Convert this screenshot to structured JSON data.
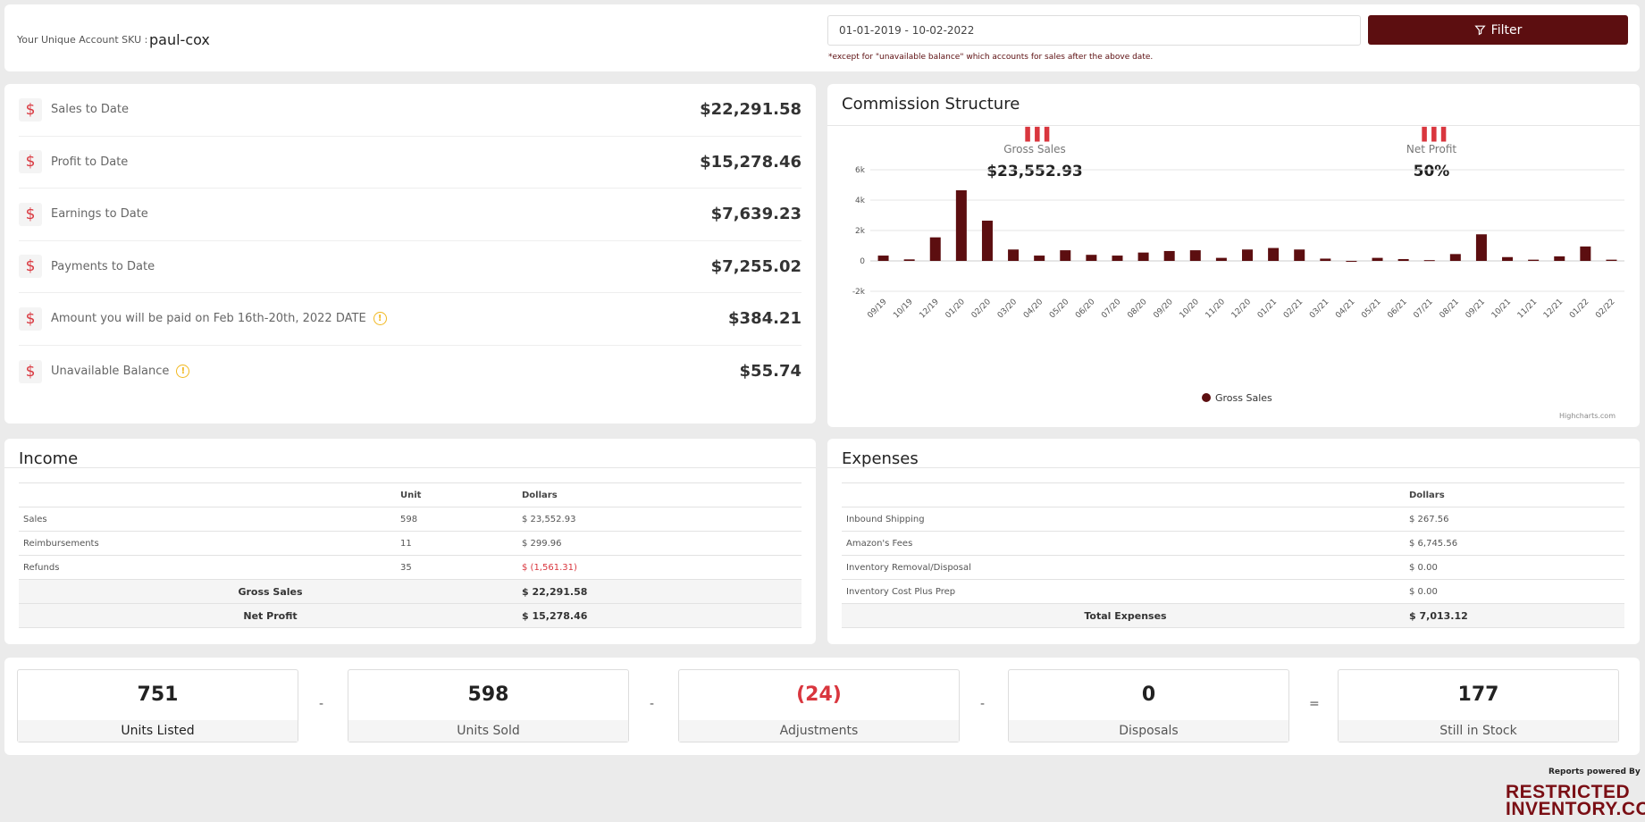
{
  "header": {
    "sku_label": "Your Unique Account SKU :",
    "sku_value": "paul-cox",
    "date_range": "01-01-2019 - 10-02-2022",
    "date_note": "*except for \"unavailable balance\" which accounts for sales after the above date.",
    "filter_label": "Filter"
  },
  "summary": {
    "rows": [
      {
        "label": "Sales to Date",
        "value": "$22,291.58",
        "info": false
      },
      {
        "label": "Profit to Date",
        "value": "$15,278.46",
        "info": false
      },
      {
        "label": "Earnings to Date",
        "value": "$7,639.23",
        "info": false
      },
      {
        "label": "Payments to Date",
        "value": "$7,255.02",
        "info": false
      },
      {
        "label": "Amount you will be paid on Feb 16th-20th, 2022 DATE",
        "value": "$384.21",
        "info": true
      },
      {
        "label": "Unavailable Balance",
        "value": "$55.74",
        "info": true
      }
    ]
  },
  "commission": {
    "title": "Commission Structure",
    "gross_label": "Gross Sales",
    "gross_value": "$23,552.93",
    "net_label": "Net Profit",
    "net_value": "50%",
    "credit": "Highcharts.com"
  },
  "chart_data": {
    "type": "bar",
    "categories": [
      "09/19",
      "10/19",
      "12/19",
      "01/20",
      "02/20",
      "03/20",
      "04/20",
      "05/20",
      "06/20",
      "07/20",
      "08/20",
      "09/20",
      "10/20",
      "11/20",
      "12/20",
      "01/21",
      "02/21",
      "03/21",
      "04/21",
      "05/21",
      "06/21",
      "07/21",
      "08/21",
      "09/21",
      "10/21",
      "11/21",
      "12/21",
      "01/22",
      "02/22"
    ],
    "series": [
      {
        "name": "Gross Sales",
        "values": [
          350,
          100,
          1550,
          4650,
          2650,
          750,
          350,
          700,
          400,
          350,
          550,
          650,
          700,
          200,
          750,
          850,
          750,
          150,
          -20,
          200,
          120,
          50,
          450,
          1750,
          250,
          80,
          300,
          950,
          80
        ]
      }
    ],
    "y_ticks": [
      "6k",
      "4k",
      "2k",
      "0",
      "-2k"
    ],
    "ylim": [
      -2000,
      6000
    ],
    "legend": "bottom-center",
    "color": "#5c0e10"
  },
  "income": {
    "title": "Income",
    "headers": [
      "",
      "Unit",
      "Dollars"
    ],
    "rows": [
      {
        "label": "Sales",
        "unit": "598",
        "dollars": "$ 23,552.93"
      },
      {
        "label": "Reimbursements",
        "unit": "11",
        "dollars": "$ 299.96"
      },
      {
        "label": "Refunds",
        "unit": "35",
        "dollars": "$ (1,561.31)"
      }
    ],
    "totals": [
      {
        "label": "Gross Sales",
        "dollars": "$ 22,291.58"
      },
      {
        "label": "Net Profit",
        "dollars": "$ 15,278.46"
      }
    ]
  },
  "expenses": {
    "title": "Expenses",
    "headers": [
      "",
      "Dollars"
    ],
    "rows": [
      {
        "label": "Inbound Shipping",
        "dollars": "$ 267.56"
      },
      {
        "label": "Amazon's Fees",
        "dollars": "$ 6,745.56"
      },
      {
        "label": "Inventory Removal/Disposal",
        "dollars": "$ 0.00"
      },
      {
        "label": "Inventory Cost Plus Prep",
        "dollars": "$ 0.00"
      }
    ],
    "total": {
      "label": "Total Expenses",
      "dollars": "$ 7,013.12"
    }
  },
  "stock": {
    "items": [
      {
        "value": "751",
        "label": "Units Listed"
      },
      {
        "value": "598",
        "label": "Units Sold"
      },
      {
        "value": "(24)",
        "label": "Adjustments"
      },
      {
        "value": "0",
        "label": "Disposals"
      },
      {
        "value": "177",
        "label": "Still in Stock"
      }
    ],
    "ops": [
      "-",
      "-",
      "-",
      "="
    ]
  },
  "footer": {
    "powered": "Reports powered By",
    "logo_line1": "RESTRICTED",
    "logo_line2": "INVENTORY.COM"
  }
}
